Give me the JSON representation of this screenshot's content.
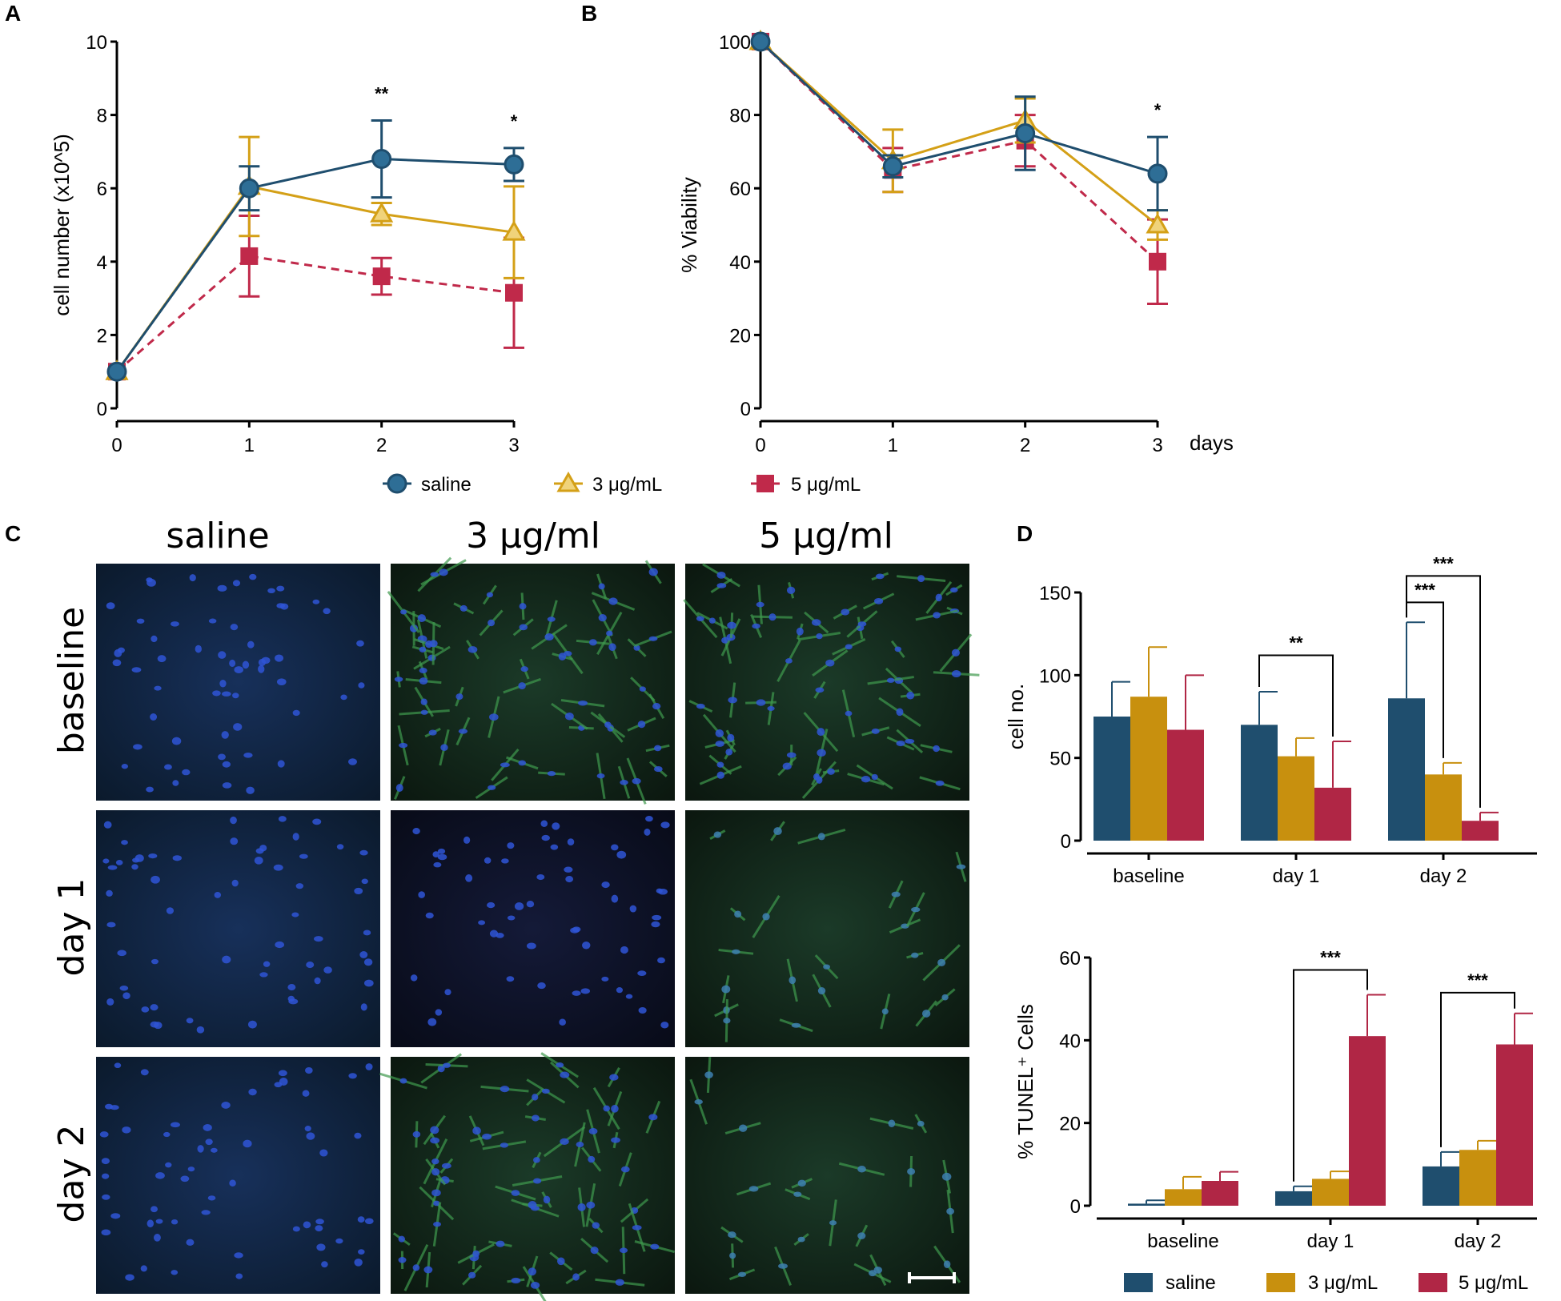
{
  "panel_labels": {
    "a": "A",
    "b": "B",
    "c": "C",
    "d": "D"
  },
  "colors": {
    "saline": "#1f4e6e",
    "dose3": "#d4a017",
    "dose5": "#c0294a",
    "dose3_bar": "#c8900e",
    "dose5_bar": "#b02645"
  },
  "legend_top": {
    "saline": "saline",
    "dose3": "3 μg/mL",
    "dose5": "5 μg/mL"
  },
  "legend_bottom": {
    "saline": "saline",
    "dose3": "3 μg/mL",
    "dose5": "5 μg/mL"
  },
  "micro": {
    "columns": [
      "saline",
      "3 μg/ml",
      "5 μg/ml"
    ],
    "rows": [
      "baseline",
      "day 1",
      "day 2"
    ]
  },
  "chart_data": [
    {
      "id": "A",
      "type": "line",
      "ylabel": "cell number (x10^5)",
      "xlabel": "",
      "x": [
        0,
        1,
        2,
        3
      ],
      "xlim": [
        0,
        3
      ],
      "ylim": [
        0,
        10
      ],
      "yticks": [
        0,
        2,
        4,
        6,
        8,
        10
      ],
      "series": [
        {
          "name": "saline",
          "values": [
            1.0,
            6.0,
            6.8,
            6.65
          ],
          "errors": [
            0,
            0.6,
            1.05,
            0.45
          ]
        },
        {
          "name": "3 μg/mL",
          "values": [
            1.0,
            6.05,
            5.3,
            4.8
          ],
          "errors": [
            0,
            1.35,
            0.3,
            1.25
          ]
        },
        {
          "name": "5 μg/mL",
          "values": [
            1.0,
            4.15,
            3.6,
            3.15
          ],
          "errors": [
            0,
            1.1,
            0.5,
            1.5
          ]
        }
      ],
      "annotations": [
        {
          "x": 2,
          "text": "**"
        },
        {
          "x": 3,
          "text": "*"
        }
      ]
    },
    {
      "id": "B",
      "type": "line",
      "ylabel": "% Viability",
      "xlabel": "days",
      "x": [
        0,
        1,
        2,
        3
      ],
      "xlim": [
        0,
        3
      ],
      "ylim": [
        0,
        100
      ],
      "yticks": [
        0,
        20,
        40,
        60,
        80,
        100
      ],
      "series": [
        {
          "name": "saline",
          "values": [
            100,
            66,
            75,
            64
          ],
          "errors": [
            0,
            3,
            10,
            10
          ]
        },
        {
          "name": "3 μg/mL",
          "values": [
            100,
            67.5,
            78.5,
            50
          ],
          "errors": [
            0,
            8.5,
            6,
            4
          ]
        },
        {
          "name": "5 μg/mL",
          "values": [
            100,
            65,
            73,
            40
          ],
          "errors": [
            0,
            6,
            7,
            11.5
          ]
        }
      ],
      "annotations": [
        {
          "x": 3,
          "text": "*"
        }
      ]
    },
    {
      "id": "D-top",
      "type": "bar",
      "ylabel": "cell no.",
      "categories": [
        "baseline",
        "day 1",
        "day 2"
      ],
      "ylim": [
        0,
        150
      ],
      "yticks": [
        0,
        50,
        100,
        150
      ],
      "series": [
        {
          "name": "saline",
          "values": [
            75,
            70,
            86
          ],
          "errors": [
            21,
            20,
            46
          ]
        },
        {
          "name": "3 μg/mL",
          "values": [
            87,
            51,
            40
          ],
          "errors": [
            30,
            11,
            7
          ]
        },
        {
          "name": "5 μg/mL",
          "values": [
            67,
            32,
            12
          ],
          "errors": [
            33,
            28,
            5
          ]
        }
      ],
      "brackets": [
        {
          "cat": 1,
          "from": 0,
          "to": 2,
          "y": 112,
          "text": "**"
        },
        {
          "cat": 2,
          "from": 0,
          "to": 1,
          "y": 144,
          "text": "***"
        },
        {
          "cat": 2,
          "from": 0,
          "to": 2,
          "y": 160,
          "text": "***"
        }
      ]
    },
    {
      "id": "D-bottom",
      "type": "bar",
      "ylabel": "% TUNEL⁺ Cells",
      "categories": [
        "baseline",
        "day 1",
        "day 2"
      ],
      "ylim": [
        0,
        60
      ],
      "yticks": [
        0,
        20,
        40,
        60
      ],
      "series": [
        {
          "name": "saline",
          "values": [
            0.5,
            3.5,
            9.5
          ],
          "errors": [
            0.8,
            1.2,
            3.5
          ]
        },
        {
          "name": "3 μg/mL",
          "values": [
            4,
            6.5,
            13.5
          ],
          "errors": [
            3,
            1.8,
            2.2
          ]
        },
        {
          "name": "5 μg/mL",
          "values": [
            6,
            41,
            39
          ],
          "errors": [
            2.2,
            10,
            7.5
          ]
        }
      ],
      "brackets": [
        {
          "cat": 1,
          "from": 0,
          "to": 2,
          "y": 57,
          "text": "***"
        },
        {
          "cat": 2,
          "from": 0,
          "to": 2,
          "y": 51.5,
          "text": "***"
        }
      ]
    }
  ]
}
